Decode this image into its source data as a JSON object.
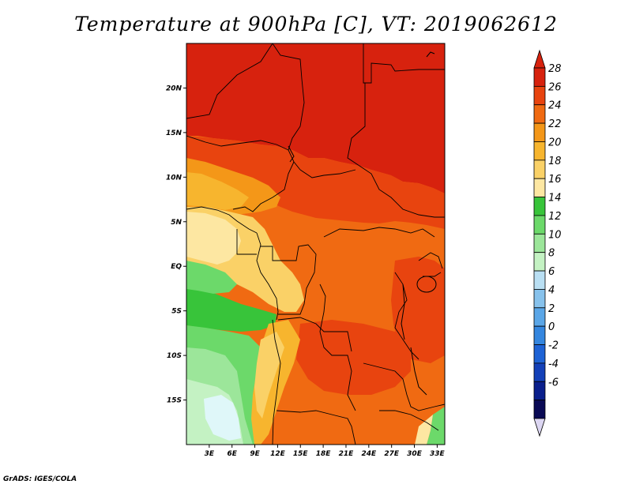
{
  "title": "Temperature at 900hPa [C], VT: 2019062612",
  "credit": "GrADS: IGES/COLA",
  "map": {
    "lon_range": [
      0,
      34
    ],
    "lat_range": [
      -20,
      25
    ],
    "x_ticks": [
      {
        "lon": 3,
        "label": "3E"
      },
      {
        "lon": 6,
        "label": "6E"
      },
      {
        "lon": 9,
        "label": "9E"
      },
      {
        "lon": 12,
        "label": "12E"
      },
      {
        "lon": 15,
        "label": "15E"
      },
      {
        "lon": 18,
        "label": "18E"
      },
      {
        "lon": 21,
        "label": "21E"
      },
      {
        "lon": 24,
        "label": "24E"
      },
      {
        "lon": 27,
        "label": "27E"
      },
      {
        "lon": 30,
        "label": "30E"
      },
      {
        "lon": 33,
        "label": "33E"
      }
    ],
    "y_ticks": [
      {
        "lat": 20,
        "label": "20N"
      },
      {
        "lat": 15,
        "label": "15N"
      },
      {
        "lat": 10,
        "label": "10N"
      },
      {
        "lat": 5,
        "label": "5N"
      },
      {
        "lat": 0,
        "label": "EQ"
      },
      {
        "lat": -5,
        "label": "5S"
      },
      {
        "lat": -10,
        "label": "10S"
      },
      {
        "lat": -15,
        "label": "15S"
      }
    ]
  },
  "colorbar": {
    "labels": [
      "28",
      "26",
      "24",
      "22",
      "20",
      "18",
      "16",
      "14",
      "12",
      "10",
      "8",
      "6",
      "4",
      "2",
      "0",
      "-2",
      "-4",
      "-6"
    ],
    "colors": [
      "#d7220e",
      "#e8440f",
      "#f06a12",
      "#f49718",
      "#f7b52e",
      "#fad167",
      "#fde7a2",
      "#38c43a",
      "#6cd96a",
      "#9ce69a",
      "#c4f2c3",
      "#b9dff3",
      "#87c2ec",
      "#5aa6e7",
      "#3486df",
      "#1d62d5",
      "#1340b8",
      "#0a1f8c",
      "#0a0a55"
    ],
    "top_arrow_color": "#d7220e",
    "bottom_arrow_color": "#dcd6f2"
  }
}
